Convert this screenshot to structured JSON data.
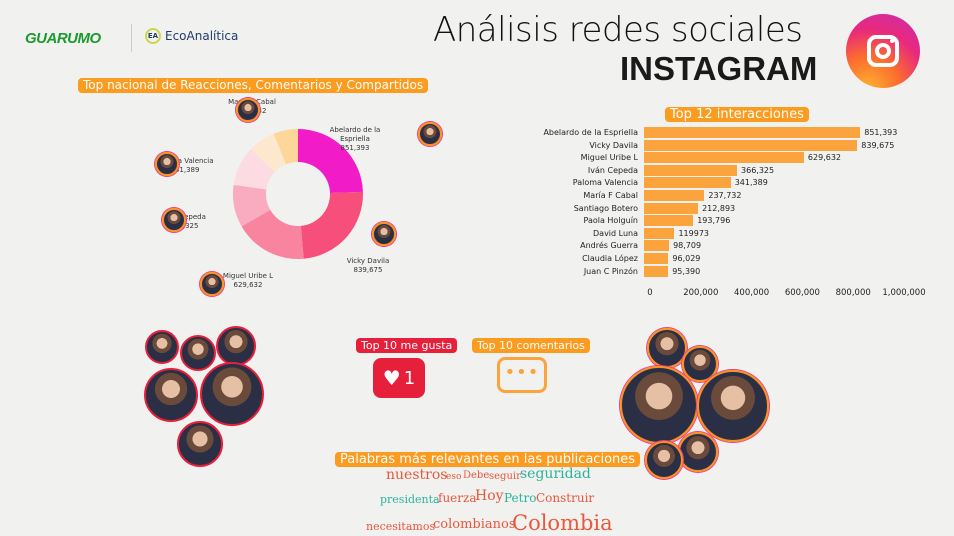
{
  "header": {
    "logo1": "GUARUMO",
    "logo2": "EcoAnalítica",
    "title": "Análisis redes sociales",
    "subtitle": "INSTAGRAM",
    "icon": "instagram-icon"
  },
  "donut_section": {
    "title": "Top nacional de Reacciones, Comentarios y Compartidos"
  },
  "bar_section": {
    "title": "Top 12 interacciones"
  },
  "chart_data": [
    {
      "type": "pie",
      "title": "Top nacional de Reacciones, Comentarios y Compartidos",
      "labels": [
        "Abelardo de la Espriella",
        "Vicky Davila",
        "Miguel Uribe L",
        "Iván Cepeda",
        "Paloma Valencia",
        "María F Cabal",
        ""
      ],
      "values": [
        851393,
        839675,
        629632,
        366325,
        341389,
        237732,
        212893
      ],
      "value_labels": [
        "851,393",
        "839,675",
        "629,632",
        "366,325",
        "341,389",
        "237,732",
        ""
      ],
      "colors": [
        "#f21bc8",
        "#f74f7b",
        "#f884a0",
        "#f9abc0",
        "#fcdbe3",
        "#fde8cd",
        "#fdd79a"
      ]
    },
    {
      "type": "bar",
      "orientation": "horizontal",
      "title": "Top 12 interacciones",
      "categories": [
        "Abelardo de la Espriella",
        "Vicky Davila",
        "Miguel Uribe L",
        "Iván Cepeda",
        "Paloma Valencia",
        "María F Cabal",
        "Santiago Botero",
        "Paola Holguín",
        "David Luna",
        "Andrés Guerra",
        "Claudia López",
        "Juan C Pinzón"
      ],
      "values": [
        851393,
        839675,
        629632,
        366325,
        341389,
        237732,
        212893,
        193796,
        119973,
        98709,
        96029,
        95390
      ],
      "value_labels": [
        "851,393",
        "839,675",
        "629,632",
        "366,325",
        "341,389",
        "237,732",
        "212,893",
        "193,796",
        "119973",
        "98,709",
        "96,029",
        "95,390"
      ],
      "xlim": [
        0,
        1000000
      ],
      "ticks": [
        "0",
        "200,000",
        "400,000",
        "600,000",
        "800,000",
        "1,000,000"
      ],
      "color": "#fba33d"
    }
  ],
  "likes": {
    "title": "Top 10 me gusta",
    "badge": "1",
    "icon": "heart-notification-icon"
  },
  "comments": {
    "title": "Top 10 comentarios",
    "icon": "comment-bubble-icon"
  },
  "words": {
    "title": "Palabras más relevantes en las publicaciones",
    "items": [
      {
        "text": "nuestros",
        "color": "#e8583a"
      },
      {
        "text": "eso",
        "color": "#e8583a"
      },
      {
        "text": "Debe",
        "color": "#e8583a"
      },
      {
        "text": "seguir",
        "color": "#e8583a"
      },
      {
        "text": "seguridad",
        "color": "#2bb39a"
      },
      {
        "text": "presidenta",
        "color": "#2bb39a"
      },
      {
        "text": "fuerza",
        "color": "#e8583a"
      },
      {
        "text": "Hoy",
        "color": "#e8583a"
      },
      {
        "text": "Petro",
        "color": "#2bb39a"
      },
      {
        "text": "Construir",
        "color": "#e8583a"
      },
      {
        "text": "necesitamos",
        "color": "#e8583a"
      },
      {
        "text": "colombianos",
        "color": "#e8583a"
      },
      {
        "text": "Colombia",
        "color": "#e8583a"
      }
    ]
  }
}
